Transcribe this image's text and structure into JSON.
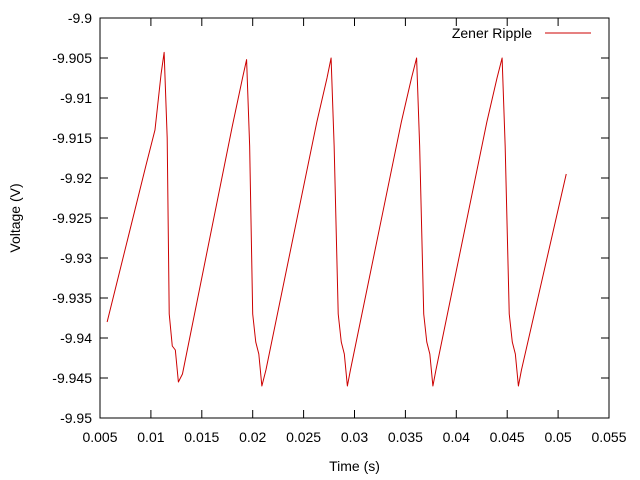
{
  "chart_data": {
    "type": "line",
    "title": "",
    "xlabel": "Time (s)",
    "ylabel": "Voltage (V)",
    "xlim": [
      0.005,
      0.055
    ],
    "ylim": [
      -9.95,
      -9.9
    ],
    "xticks": [
      0.005,
      0.01,
      0.015,
      0.02,
      0.025,
      0.03,
      0.035,
      0.04,
      0.045,
      0.05,
      0.055
    ],
    "xtick_labels": [
      "0.005",
      "0.01",
      "0.015",
      "0.02",
      "0.025",
      "0.03",
      "0.035",
      "0.04",
      "0.045",
      "0.05",
      "0.055"
    ],
    "yticks": [
      -9.9,
      -9.905,
      -9.91,
      -9.915,
      -9.92,
      -9.925,
      -9.93,
      -9.935,
      -9.94,
      -9.945,
      -9.95
    ],
    "ytick_labels": [
      "-9.9",
      "-9.905",
      "-9.91",
      "-9.915",
      "-9.92",
      "-9.925",
      "-9.93",
      "-9.935",
      "-9.94",
      "-9.945",
      "-9.95"
    ],
    "grid": false,
    "legend_position": "top-right",
    "series": [
      {
        "name": "Zener Ripple",
        "color": "#cc0000",
        "x": [
          0.0057,
          0.0095,
          0.0104,
          0.011,
          0.0113,
          0.0116,
          0.0118,
          0.0121,
          0.0124,
          0.0127,
          0.0131,
          0.018,
          0.019,
          0.0194,
          0.0197,
          0.02,
          0.0203,
          0.0206,
          0.0209,
          0.0213,
          0.0263,
          0.0273,
          0.0277,
          0.028,
          0.0284,
          0.0287,
          0.029,
          0.0293,
          0.0296,
          0.0346,
          0.0356,
          0.0361,
          0.0364,
          0.0368,
          0.0371,
          0.0374,
          0.0377,
          0.038,
          0.043,
          0.044,
          0.0445,
          0.0448,
          0.0452,
          0.0455,
          0.0458,
          0.0461,
          0.0464,
          0.0508
        ],
        "y": [
          -9.938,
          -9.9185,
          -9.914,
          -9.907,
          -9.9043,
          -9.915,
          -9.937,
          -9.941,
          -9.9415,
          -9.9455,
          -9.9445,
          -9.9135,
          -9.9075,
          -9.9052,
          -9.916,
          -9.937,
          -9.9405,
          -9.942,
          -9.946,
          -9.944,
          -9.913,
          -9.9075,
          -9.905,
          -9.916,
          -9.937,
          -9.9405,
          -9.942,
          -9.946,
          -9.944,
          -9.913,
          -9.9075,
          -9.905,
          -9.916,
          -9.937,
          -9.9405,
          -9.942,
          -9.946,
          -9.944,
          -9.913,
          -9.9075,
          -9.905,
          -9.916,
          -9.937,
          -9.9405,
          -9.942,
          -9.946,
          -9.944,
          -9.9195
        ]
      }
    ]
  }
}
